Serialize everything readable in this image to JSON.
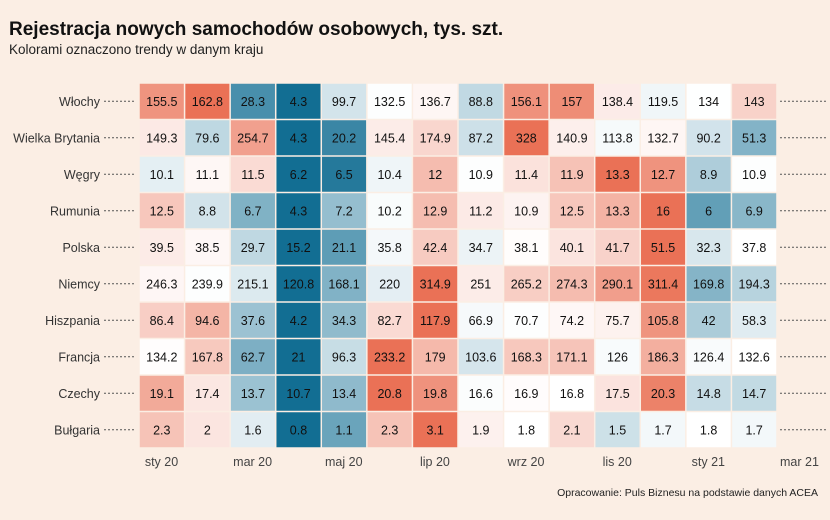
{
  "title": "Rejestracja nowych samochodów osobowych, tys. szt.",
  "subtitle": "Kolorami oznaczono trendy w danym kraju",
  "caption": "Opracowanie: Puls Biznesu na podstawie danych ACEA",
  "colors": {
    "background": "#fbeee4",
    "low": "#05668d",
    "mid": "#ffffff",
    "high": "#e96a4d"
  },
  "chart_data": {
    "type": "heatmap",
    "title": "Rejestracja nowych samochodów osobowych, tys. szt.",
    "subtitle": "Kolorami oznaczono trendy w danym kraju",
    "columns": [
      "2020-01",
      "2020-02",
      "2020-03",
      "2020-04",
      "2020-05",
      "2020-06",
      "2020-07",
      "2020-08",
      "2020-09",
      "2020-10",
      "2020-11",
      "2020-12",
      "2021-01",
      "2021-02"
    ],
    "x_ticks": [
      "sty 20",
      "mar 20",
      "maj 20",
      "lip 20",
      "wrz 20",
      "lis 20",
      "sty 21",
      "mar 21"
    ],
    "x_tick_columns": [
      0,
      2,
      4,
      6,
      8,
      10,
      12,
      14
    ],
    "rows": [
      {
        "name": "Włochy",
        "values": [
          155.5,
          162.8,
          28.3,
          4.3,
          99.7,
          132.5,
          136.7,
          88.8,
          156.1,
          157,
          138.4,
          119.5,
          134,
          143
        ]
      },
      {
        "name": "Wielka Brytania",
        "values": [
          149.3,
          79.6,
          254.7,
          4.3,
          20.2,
          145.4,
          174.9,
          87.2,
          328,
          140.9,
          113.8,
          132.7,
          90.2,
          51.3
        ]
      },
      {
        "name": "Węgry",
        "values": [
          10.1,
          11.1,
          11.5,
          6.2,
          6.5,
          10.4,
          12,
          10.9,
          11.4,
          11.9,
          13.3,
          12.7,
          8.9,
          10.9
        ]
      },
      {
        "name": "Rumunia",
        "values": [
          12.5,
          8.8,
          6.7,
          4.3,
          7.2,
          10.2,
          12.9,
          11.2,
          10.9,
          12.5,
          13.3,
          16,
          6,
          6.9
        ]
      },
      {
        "name": "Polska",
        "values": [
          39.5,
          38.5,
          29.7,
          15.2,
          21.1,
          35.8,
          42.4,
          34.7,
          38.1,
          40.1,
          41.7,
          51.5,
          32.3,
          37.8
        ]
      },
      {
        "name": "Niemcy",
        "values": [
          246.3,
          239.9,
          215.1,
          120.8,
          168.1,
          220,
          314.9,
          251,
          265.2,
          274.3,
          290.1,
          311.4,
          169.8,
          194.3
        ]
      },
      {
        "name": "Hiszpania",
        "values": [
          86.4,
          94.6,
          37.6,
          4.2,
          34.3,
          82.7,
          117.9,
          66.9,
          70.7,
          74.2,
          75.7,
          105.8,
          42,
          58.3
        ]
      },
      {
        "name": "Francja",
        "values": [
          134.2,
          167.8,
          62.7,
          21,
          96.3,
          233.2,
          179,
          103.6,
          168.3,
          171.1,
          126,
          186.3,
          126.4,
          132.6
        ]
      },
      {
        "name": "Czechy",
        "values": [
          19.1,
          17.4,
          13.7,
          10.7,
          13.4,
          20.8,
          19.8,
          16.6,
          16.9,
          16.8,
          17.5,
          20.3,
          14.8,
          14.7
        ]
      },
      {
        "name": "Bułgaria",
        "values": [
          2.3,
          2,
          1.6,
          0.8,
          1.1,
          2.3,
          3.1,
          1.9,
          1.8,
          2.1,
          1.5,
          1.7,
          1.8,
          1.7
        ]
      }
    ],
    "grid": false,
    "legend": "none"
  }
}
